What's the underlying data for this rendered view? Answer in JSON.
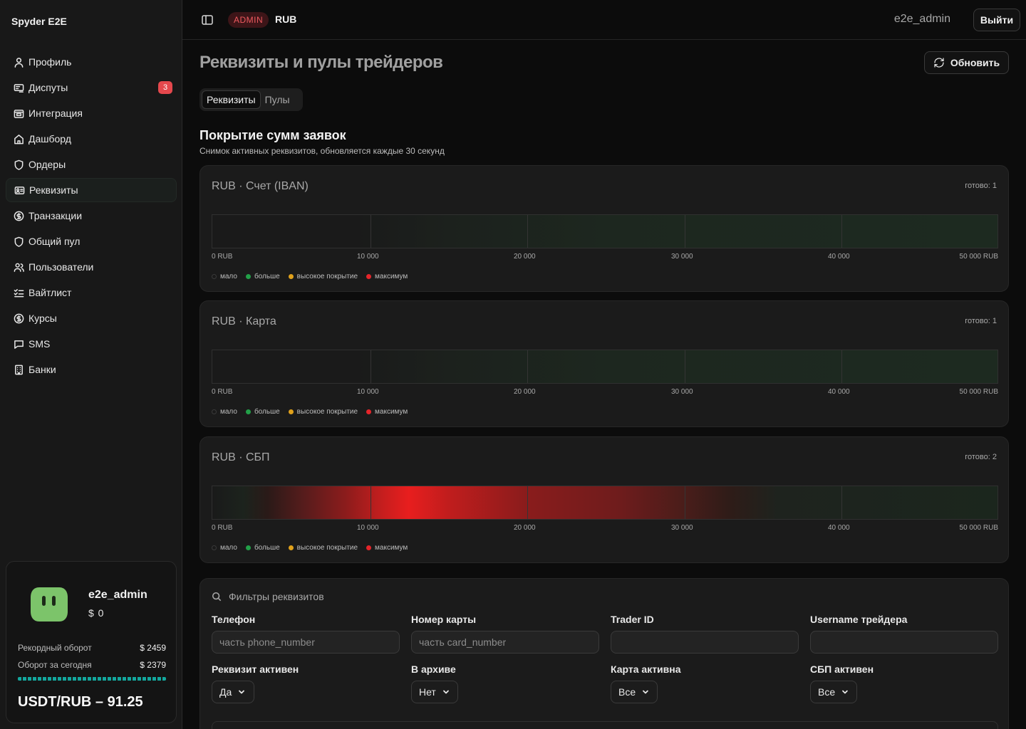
{
  "app": {
    "brand": "Spyder E2E"
  },
  "sidebar": {
    "items": [
      {
        "label": "Профиль",
        "icon": "user-icon"
      },
      {
        "label": "Диспуты",
        "icon": "dispute-icon",
        "badge": "3"
      },
      {
        "label": "Интеграция",
        "icon": "integration-icon"
      },
      {
        "label": "Дашборд",
        "icon": "home-icon"
      },
      {
        "label": "Ордеры",
        "icon": "shield-icon"
      },
      {
        "label": "Реквизиты",
        "icon": "id-card-icon",
        "active": true
      },
      {
        "label": "Транзакции",
        "icon": "dollar-icon"
      },
      {
        "label": "Общий пул",
        "icon": "shield-icon"
      },
      {
        "label": "Пользователи",
        "icon": "users-icon"
      },
      {
        "label": "Вайтлист",
        "icon": "list-check-icon"
      },
      {
        "label": "Курсы",
        "icon": "dollar-icon"
      },
      {
        "label": "SMS",
        "icon": "message-icon"
      },
      {
        "label": "Банки",
        "icon": "building-icon"
      }
    ]
  },
  "user_card": {
    "name": "e2e_admin",
    "balance": "$ 0",
    "record_label": "Рекордный оборот",
    "record_value": "$ 2459",
    "today_label": "Оборот за сегодня",
    "today_value": "$ 2379",
    "rate": "USDT/RUB – 91.25"
  },
  "topbar": {
    "role": "ADMIN",
    "currency": "RUB",
    "username": "e2e_admin",
    "logout": "Выйти"
  },
  "page": {
    "title": "Реквизиты и пулы трейдеров",
    "refresh": "Обновить",
    "tabs": [
      {
        "label": "Реквизиты",
        "active": true
      },
      {
        "label": "Пулы"
      }
    ],
    "section_title": "Покрытие сумм заявок",
    "section_sub": "Снимок активных реквизитов, обновляется каждые 30 секунд"
  },
  "coverage": {
    "ticks": [
      "0 RUB",
      "10 000",
      "20 000",
      "30 000",
      "40 000",
      "50 000 RUB"
    ],
    "legend": [
      {
        "label": "мало",
        "color": "#1a1a1a"
      },
      {
        "label": "больше",
        "color": "#22a048"
      },
      {
        "label": "высокое покрытие",
        "color": "#e0a11b"
      },
      {
        "label": "максимум",
        "color": "#e5252a"
      }
    ],
    "cards": [
      {
        "title": "RUB · Счет (IBAN)",
        "ready": "готово: 1",
        "mode": "green"
      },
      {
        "title": "RUB · Карта",
        "ready": "готово: 1",
        "mode": "green"
      },
      {
        "title": "RUB · СБП",
        "ready": "готово: 2",
        "mode": "red"
      }
    ]
  },
  "filters": {
    "title": "Фильтры реквизитов",
    "fields": [
      {
        "label": "Телефон",
        "placeholder": "часть phone_number",
        "value": ""
      },
      {
        "label": "Номер карты",
        "placeholder": "часть card_number",
        "value": ""
      },
      {
        "label": "Trader ID",
        "placeholder": "",
        "value": ""
      },
      {
        "label": "Username трейдера",
        "placeholder": "",
        "value": ""
      }
    ],
    "selects": [
      {
        "label": "Реквизит активен",
        "value": "Да"
      },
      {
        "label": "В архиве",
        "value": "Нет"
      },
      {
        "label": "Карта активна",
        "value": "Все"
      },
      {
        "label": "СБП активен",
        "value": "Все"
      }
    ]
  },
  "colors": {
    "accent_teal": "#13a89e",
    "danger": "#e5484d",
    "max_red": "#e5252a",
    "more_green": "#22a048"
  }
}
